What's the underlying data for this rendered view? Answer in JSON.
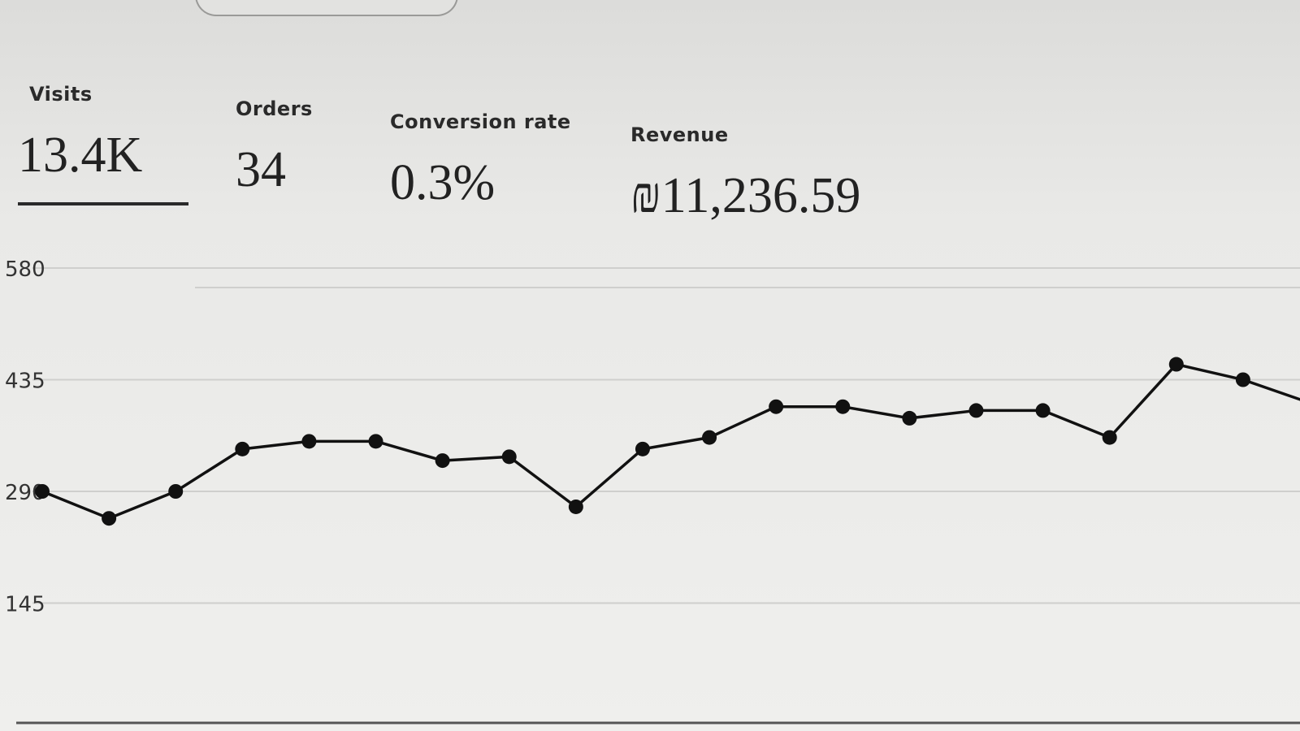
{
  "metrics": {
    "visits": {
      "label": "Visits",
      "value": "13.4K",
      "selected": true
    },
    "orders": {
      "label": "Orders",
      "value": "34"
    },
    "conversion": {
      "label": "Conversion rate",
      "value": "0.3%"
    },
    "revenue": {
      "label": "Revenue",
      "value": "₪11,236.59"
    }
  },
  "chart_data": {
    "type": "line",
    "title": "Visits",
    "xlabel": "",
    "ylabel": "",
    "y_ticks": [
      "580",
      "435",
      "290",
      "145"
    ],
    "ylim": [
      0,
      580
    ],
    "grid": true,
    "series": [
      {
        "name": "Visits",
        "values": [
          290,
          255,
          290,
          345,
          355,
          355,
          330,
          335,
          270,
          345,
          360,
          400,
          400,
          385,
          395,
          395,
          360,
          455,
          435,
          405
        ]
      }
    ]
  },
  "colors": {
    "line": "#111111",
    "grid": "#cfcfcd",
    "background": "#ececea"
  }
}
